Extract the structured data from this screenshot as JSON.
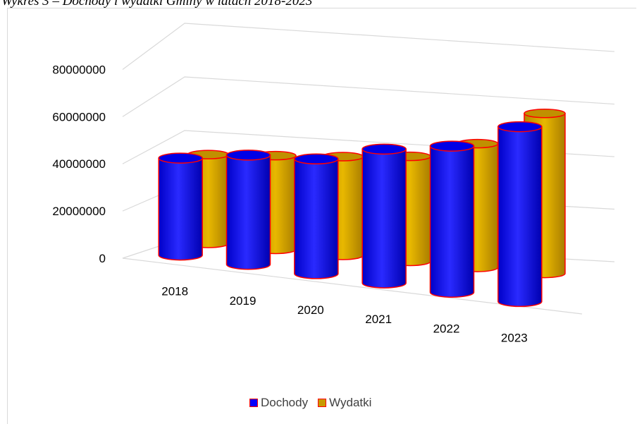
{
  "caption": "Wykres 3 – Dochody i wydatki Gminy w latach 2018-2023",
  "chart_data": {
    "type": "bar",
    "style": "3d-cylinder",
    "categories": [
      "2018",
      "2019",
      "2020",
      "2021",
      "2022",
      "2023"
    ],
    "series": [
      {
        "name": "Dochody",
        "color": "#0000ff",
        "values": [
          35500000,
          40000000,
          42000000,
          49000000,
          53500000,
          64000000
        ]
      },
      {
        "name": "Wydatki",
        "color": "#c89a00",
        "values": [
          35500000,
          37500000,
          39500000,
          42000000,
          49500000,
          64000000
        ]
      }
    ],
    "outline_color": "#ff0000",
    "yticks": [
      0,
      20000000,
      40000000,
      60000000,
      80000000
    ],
    "ylim": [
      0,
      80000000
    ],
    "grid": true,
    "legend": "bottom"
  },
  "legend": {
    "items": [
      {
        "label": "Dochody",
        "color": "#0000ff"
      },
      {
        "label": "Wydatki",
        "color": "#c89a00"
      }
    ]
  }
}
